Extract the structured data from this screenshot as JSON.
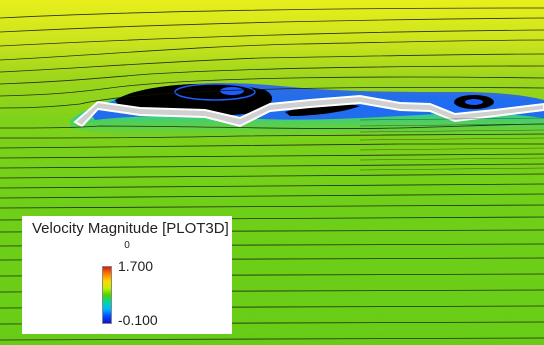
{
  "legend": {
    "title": "Velocity Magnitude [PLOT3D]",
    "component": "0",
    "max_label": "1.700",
    "min_label": "-0.100"
  },
  "colors": {
    "high": "#d7191c",
    "mid_high": "#ffd700",
    "mid": "#4cd300",
    "low": "#1010d0",
    "recirculation": "#000000",
    "wing_body": "#cfcfcf"
  }
}
